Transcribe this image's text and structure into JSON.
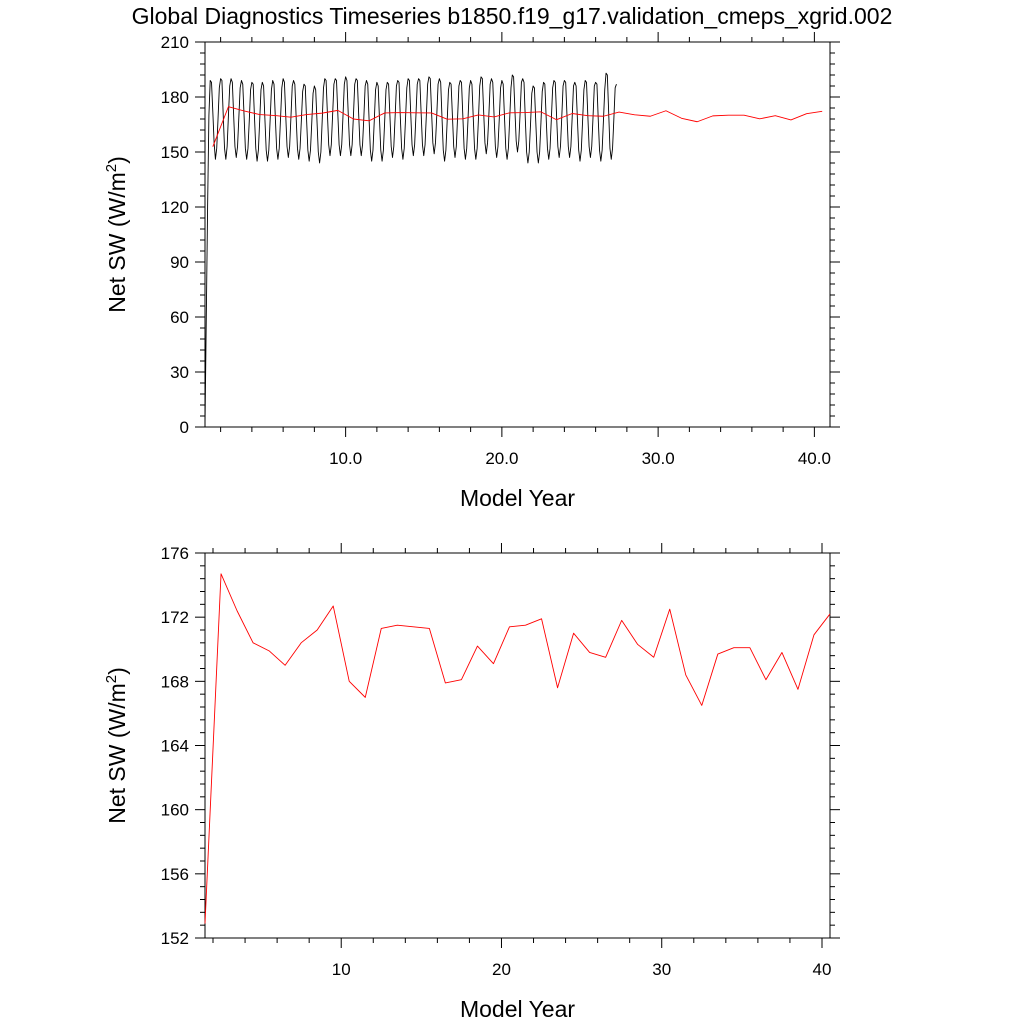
{
  "title": "Global Diagnostics Timeseries b1850.f19_g17.validation_cmeps_xgrid.002",
  "colors": {
    "monthly": "#000000",
    "annual": "#ff0000",
    "axes": "#000000",
    "background": "#ffffff"
  },
  "chart_data": [
    {
      "type": "line",
      "xlabel": "Model Year",
      "ylabel_main": "Net SW (W/m",
      "ylabel_sup": "2",
      "ylabel_end": ")",
      "xlim": [
        1.0,
        41.0
      ],
      "ylim": [
        0,
        210
      ],
      "x_ticks": [
        10,
        20,
        30,
        40
      ],
      "x_tick_labels": [
        "10.0",
        "20.0",
        "30.0",
        "40.0"
      ],
      "y_ticks": [
        0,
        30,
        60,
        90,
        120,
        150,
        180,
        210
      ],
      "y_tick_labels": [
        "0",
        "30",
        "60",
        "90",
        "120",
        "150",
        "180",
        "210"
      ],
      "grid": false,
      "series": [
        {
          "kind": "monthly",
          "start_year": 1.0,
          "step_years": 0.0833333,
          "note_values": "Monthly mean series: 1 to 190, then seasonal oscillation",
          "values": [
            1,
            60,
            120,
            170,
            189,
            188,
            172,
            155,
            146,
            152,
            168,
            185,
            190,
            189,
            170,
            152,
            146,
            153,
            170,
            186,
            190,
            188,
            170,
            153,
            147,
            153,
            169,
            185,
            189,
            187,
            170,
            152,
            146,
            152,
            167,
            184,
            188,
            187,
            169,
            152,
            145,
            151,
            167,
            184,
            188,
            186,
            168,
            151,
            145,
            151,
            167,
            184,
            189,
            187,
            169,
            152,
            146,
            152,
            168,
            185,
            190,
            188,
            170,
            153,
            147,
            153,
            169,
            186,
            189,
            187,
            169,
            152,
            146,
            152,
            167,
            183,
            187,
            186,
            168,
            151,
            145,
            151,
            166,
            182,
            186,
            184,
            167,
            150,
            144,
            150,
            167,
            185,
            190,
            189,
            171,
            154,
            148,
            154,
            170,
            187,
            190,
            189,
            171,
            154,
            148,
            154,
            170,
            187,
            191,
            189,
            171,
            154,
            148,
            154,
            170,
            187,
            190,
            189,
            171,
            154,
            148,
            154,
            169,
            186,
            189,
            187,
            168,
            151,
            145,
            151,
            167,
            184,
            188,
            186,
            168,
            151,
            145,
            151,
            167,
            184,
            188,
            187,
            170,
            153,
            147,
            153,
            169,
            186,
            189,
            188,
            169,
            152,
            146,
            152,
            168,
            185,
            190,
            189,
            171,
            154,
            148,
            154,
            170,
            187,
            190,
            189,
            171,
            154,
            148,
            154,
            170,
            187,
            191,
            190,
            172,
            155,
            149,
            155,
            170,
            187,
            190,
            188,
            169,
            151,
            145,
            151,
            167,
            184,
            188,
            187,
            170,
            153,
            147,
            153,
            169,
            186,
            189,
            188,
            170,
            152,
            146,
            152,
            168,
            185,
            189,
            187,
            169,
            152,
            146,
            152,
            168,
            186,
            191,
            190,
            172,
            155,
            149,
            155,
            170,
            187,
            190,
            188,
            170,
            153,
            147,
            153,
            168,
            185,
            189,
            187,
            169,
            152,
            146,
            152,
            168,
            185,
            192,
            191,
            173,
            156,
            150,
            156,
            171,
            188,
            190,
            188,
            168,
            150,
            144,
            150,
            165,
            182,
            186,
            185,
            167,
            150,
            144,
            150,
            166,
            183,
            188,
            187,
            169,
            152,
            146,
            152,
            168,
            185,
            189,
            188,
            170,
            153,
            147,
            153,
            169,
            186,
            189,
            188,
            170,
            153,
            147,
            153,
            169,
            186,
            188,
            186,
            168,
            151,
            145,
            151,
            167,
            184,
            189,
            188,
            170,
            153,
            147,
            153,
            169,
            186,
            188,
            187,
            168,
            151,
            145,
            151,
            167,
            184,
            193,
            192,
            172,
            152,
            146,
            152,
            168,
            185,
            187
          ]
        },
        {
          "kind": "annual",
          "x": [
            1.5,
            2.5,
            3.5,
            4.5,
            5.5,
            6.5,
            7.5,
            8.5,
            9.5,
            10.5,
            11.5,
            12.5,
            13.5,
            14.5,
            15.5,
            16.5,
            17.5,
            18.5,
            19.5,
            20.5,
            21.5,
            22.5,
            23.5,
            24.5,
            25.5,
            26.5,
            27.5,
            28.5,
            29.5,
            30.5,
            31.5,
            32.5,
            33.5,
            34.5,
            35.5,
            36.5,
            37.5,
            38.5,
            39.5,
            40.5
          ],
          "values": [
            152.9,
            174.7,
            172.4,
            170.4,
            169.9,
            169.0,
            170.4,
            171.2,
            172.7,
            168.0,
            167.0,
            171.3,
            171.5,
            171.4,
            171.3,
            167.9,
            168.1,
            170.2,
            169.1,
            171.4,
            171.5,
            171.9,
            167.6,
            171.0,
            169.8,
            169.5,
            171.8,
            170.3,
            169.5,
            172.5,
            168.4,
            166.5,
            169.7,
            170.1,
            170.1,
            168.1,
            169.8,
            167.5,
            170.9,
            172.2
          ]
        }
      ]
    },
    {
      "type": "line",
      "xlabel": "Model Year",
      "ylabel_main": "Net SW (W/m",
      "ylabel_sup": "2",
      "ylabel_end": ")",
      "xlim": [
        1.5,
        40.5
      ],
      "ylim": [
        152,
        176
      ],
      "x_ticks": [
        10,
        20,
        30,
        40
      ],
      "x_tick_labels": [
        "10",
        "20",
        "30",
        "40"
      ],
      "y_ticks": [
        152,
        156,
        160,
        164,
        168,
        172,
        176
      ],
      "y_tick_labels": [
        "152",
        "156",
        "160",
        "164",
        "168",
        "172",
        "176"
      ],
      "grid": false,
      "series": [
        {
          "kind": "annual",
          "x": [
            1.5,
            2.5,
            3.5,
            4.5,
            5.5,
            6.5,
            7.5,
            8.5,
            9.5,
            10.5,
            11.5,
            12.5,
            13.5,
            14.5,
            15.5,
            16.5,
            17.5,
            18.5,
            19.5,
            20.5,
            21.5,
            22.5,
            23.5,
            24.5,
            25.5,
            26.5,
            27.5,
            28.5,
            29.5,
            30.5,
            31.5,
            32.5,
            33.5,
            34.5,
            35.5,
            36.5,
            37.5,
            38.5,
            39.5,
            40.5
          ],
          "values": [
            152.9,
            174.7,
            172.4,
            170.4,
            169.9,
            169.0,
            170.4,
            171.2,
            172.7,
            168.0,
            167.0,
            171.3,
            171.5,
            171.4,
            171.3,
            167.9,
            168.1,
            170.2,
            169.1,
            171.4,
            171.5,
            171.9,
            167.6,
            171.0,
            169.8,
            169.5,
            171.8,
            170.3,
            169.5,
            172.5,
            168.4,
            166.5,
            169.7,
            170.1,
            170.1,
            168.1,
            169.8,
            167.5,
            170.9,
            172.2
          ]
        }
      ]
    }
  ]
}
